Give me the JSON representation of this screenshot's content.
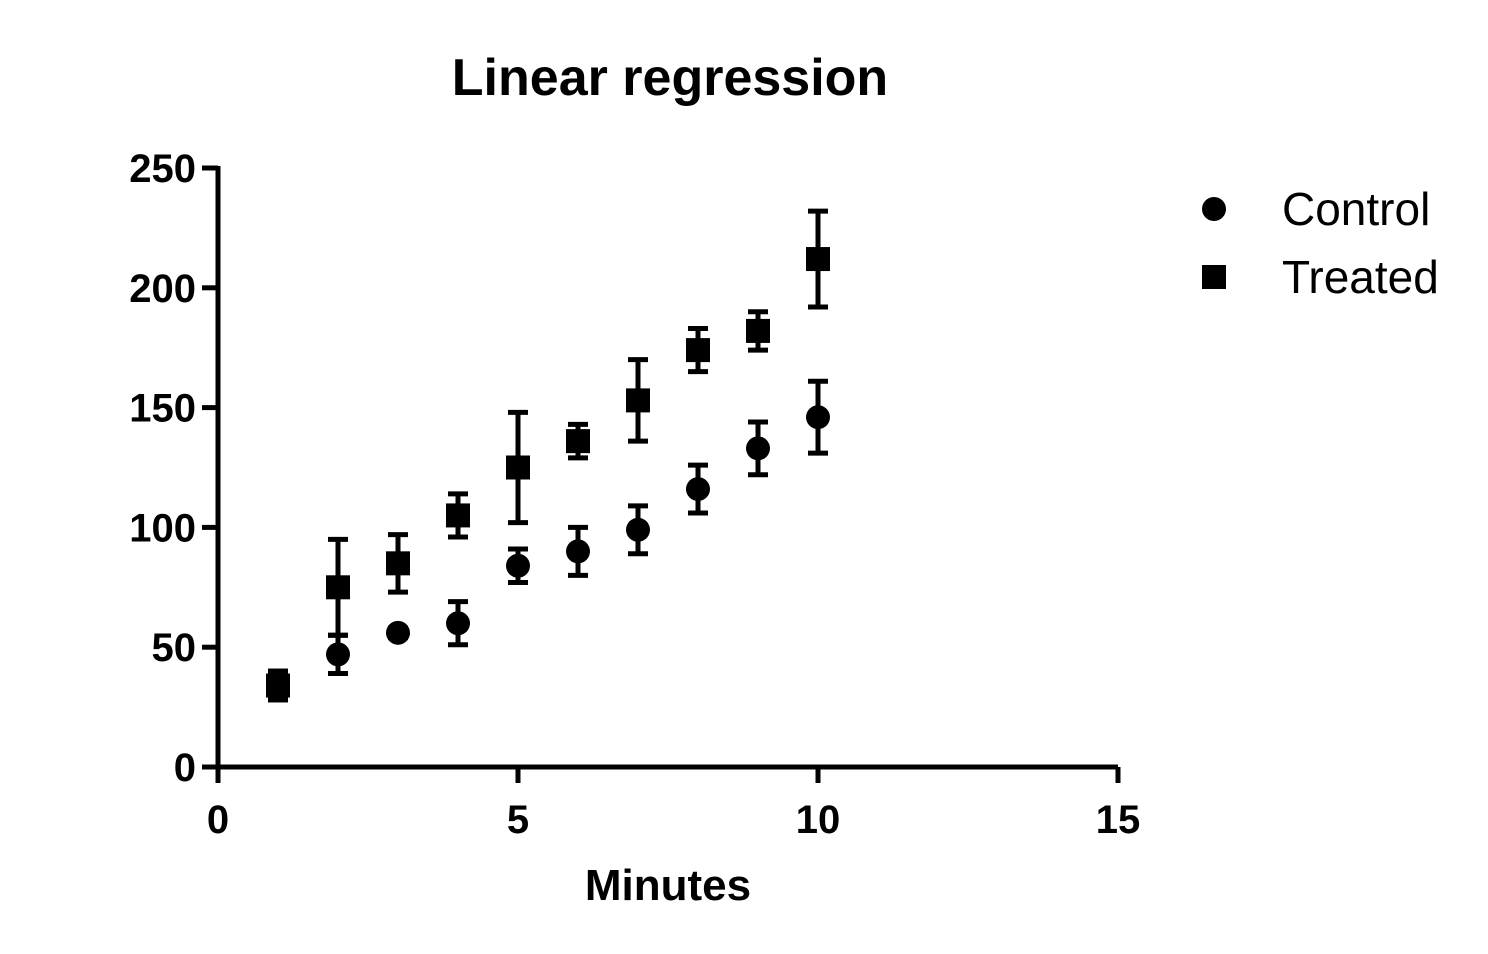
{
  "chart_data": {
    "type": "scatter",
    "title": "Linear regression",
    "xlabel": "Minutes",
    "ylabel": "",
    "xlim": [
      0,
      15
    ],
    "ylim": [
      0,
      250
    ],
    "x_ticks": [
      0,
      5,
      10,
      15
    ],
    "y_ticks": [
      0,
      50,
      100,
      150,
      200,
      250
    ],
    "legend_position": "top-right",
    "grid": false,
    "series": [
      {
        "name": "Control",
        "marker": "circle",
        "color": "#000000",
        "x": [
          1,
          2,
          3,
          4,
          5,
          6,
          7,
          8,
          9,
          10
        ],
        "y": [
          34,
          47,
          56,
          60,
          84,
          90,
          99,
          116,
          133,
          146
        ],
        "err": [
          6,
          8,
          2,
          9,
          7,
          10,
          10,
          10,
          11,
          15
        ]
      },
      {
        "name": "Treated",
        "marker": "square",
        "color": "#000000",
        "x": [
          1,
          2,
          3,
          4,
          5,
          6,
          7,
          8,
          9,
          10
        ],
        "y": [
          34,
          75,
          85,
          105,
          125,
          136,
          153,
          174,
          182,
          212
        ],
        "err": [
          6,
          20,
          12,
          9,
          23,
          7,
          17,
          9,
          8,
          20
        ]
      }
    ]
  }
}
